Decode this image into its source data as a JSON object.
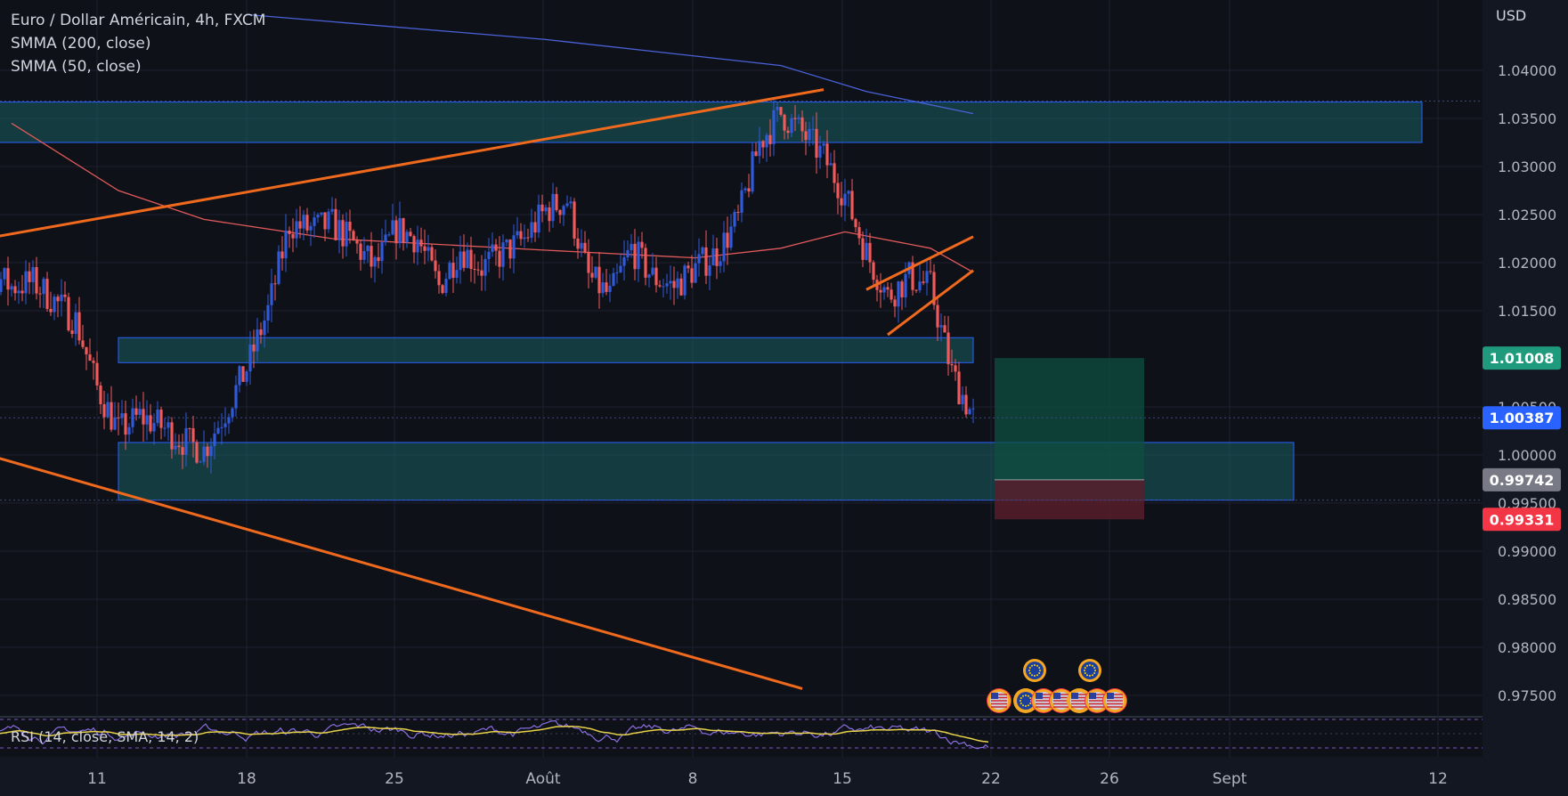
{
  "legend": {
    "symbol": "Euro / Dollar Américain, 4h, FXCM",
    "smma200": "SMMA (200, close)",
    "smma50": "SMMA (50, close)"
  },
  "rsi_label": "RSI (14, close, SMA, 14, 2)",
  "currency": "USD",
  "colors": {
    "background": "#0f1119",
    "bull": "#2f5bdb",
    "bear": "#f05a5a",
    "smma200": "#4a62d8",
    "smma50": "#e05a5a",
    "trendline": "#f06a1e",
    "zone_fill": "#1a6e6e",
    "zone_border": "#2962ff",
    "target_zone": "#0f4f40",
    "stop_zone": "#5a1e2a",
    "rsi": "#8a6fe0",
    "rsi_ma": "#e6d24a"
  },
  "chart_data": {
    "type": "candlestick",
    "symbol": "EURUSD",
    "timeframe": "4h",
    "y_axis_ticks": [
      "1.04000",
      "1.03500",
      "1.03000",
      "1.02500",
      "1.02000",
      "1.01500",
      "1.00500",
      "1.00000",
      "0.99500",
      "0.99000",
      "0.98500",
      "0.98000",
      "0.97500"
    ],
    "x_axis_ticks": [
      "11",
      "18",
      "25",
      "Août",
      "8",
      "15",
      "22",
      "26",
      "Sept",
      "12"
    ],
    "ylim": [
      0.9725,
      1.0435
    ],
    "price_tags": [
      {
        "label": "1.01008",
        "value": 1.01008,
        "color": "#1f9a7c"
      },
      {
        "label": "1.00387",
        "value": 1.00387,
        "color": "#2962ff"
      },
      {
        "label": "0.99742",
        "value": 0.99742,
        "color": "#787b86"
      },
      {
        "label": "0.99331",
        "value": 0.99331,
        "color": "#f23645"
      }
    ],
    "zones": [
      {
        "name": "resistance-zone-top",
        "from_date": "2022-07-04",
        "to_date": "2022-09-11",
        "low": 1.0325,
        "high": 1.0367
      },
      {
        "name": "support-zone-middle",
        "from_date": "2022-07-12",
        "to_date": "2022-08-21",
        "low": 1.0096,
        "high": 1.0122
      },
      {
        "name": "support-zone-bottom",
        "from_date": "2022-07-12",
        "to_date": "2022-09-05",
        "low": 0.9953,
        "high": 1.0013
      }
    ],
    "position": {
      "entry": 0.99742,
      "target": 1.01008,
      "stop": 0.99331,
      "from_date": "2022-08-22",
      "to_date": "2022-08-29"
    },
    "trendlines": [
      {
        "name": "rising-resistance-line",
        "from": [
          "2022-07-05",
          1.0222
        ],
        "to": [
          "2022-08-14",
          1.038
        ]
      },
      {
        "name": "falling-support-line",
        "from": [
          "2022-07-04",
          1.0012
        ],
        "to": [
          "2022-08-13",
          0.9757
        ]
      },
      {
        "name": "flag-upper-line",
        "from": [
          "2022-08-16",
          1.0172
        ],
        "to": [
          "2022-08-21",
          1.0227
        ]
      },
      {
        "name": "flag-lower-line",
        "from": [
          "2022-08-17",
          1.0125
        ],
        "to": [
          "2022-08-21",
          1.0192
        ]
      }
    ],
    "ohlc_path": [
      [
        "2022-07-04",
        1.027
      ],
      [
        "2022-07-06",
        1.019
      ],
      [
        "2022-07-07",
        1.0175
      ],
      [
        "2022-07-08",
        1.018
      ],
      [
        "2022-07-10",
        1.014
      ],
      [
        "2022-07-11",
        1.007
      ],
      [
        "2022-07-12",
        1.0025
      ],
      [
        "2022-07-13",
        1.004
      ],
      [
        "2022-07-14",
        1.003
      ],
      [
        "2022-07-15",
        1.0015
      ],
      [
        "2022-07-16",
        1.0005
      ],
      [
        "2022-07-17",
        1.0045
      ],
      [
        "2022-07-18",
        1.009
      ],
      [
        "2022-07-19",
        1.015
      ],
      [
        "2022-07-20",
        1.024
      ],
      [
        "2022-07-21",
        1.0235
      ],
      [
        "2022-07-22",
        1.024
      ],
      [
        "2022-07-23",
        1.022
      ],
      [
        "2022-07-24",
        1.0195
      ],
      [
        "2022-07-25",
        1.0235
      ],
      [
        "2022-07-26",
        1.0225
      ],
      [
        "2022-07-27",
        1.0175
      ],
      [
        "2022-07-28",
        1.0215
      ],
      [
        "2022-07-29",
        1.0195
      ],
      [
        "2022-07-31",
        1.0225
      ],
      [
        "2022-08-01",
        1.0255
      ],
      [
        "2022-08-02",
        1.0265
      ],
      [
        "2022-08-03",
        1.0185
      ],
      [
        "2022-08-04",
        1.0165
      ],
      [
        "2022-08-05",
        1.0215
      ],
      [
        "2022-08-06",
        1.0185
      ],
      [
        "2022-08-07",
        1.0175
      ],
      [
        "2022-08-08",
        1.0195
      ],
      [
        "2022-08-09",
        1.021
      ],
      [
        "2022-08-10",
        1.0245
      ],
      [
        "2022-08-11",
        1.0325
      ],
      [
        "2022-08-12",
        1.0355
      ],
      [
        "2022-08-13",
        1.0335
      ],
      [
        "2022-08-14",
        1.031
      ],
      [
        "2022-08-15",
        1.027
      ],
      [
        "2022-08-16",
        1.021
      ],
      [
        "2022-08-17",
        1.0165
      ],
      [
        "2022-08-18",
        1.0185
      ],
      [
        "2022-08-19",
        1.0175
      ],
      [
        "2022-08-20",
        1.0085
      ],
      [
        "2022-08-21",
        1.0039
      ]
    ],
    "smma200_path": [
      [
        "2022-07-18",
        1.0458
      ],
      [
        "2022-08-01",
        1.0432
      ],
      [
        "2022-08-12",
        1.0405
      ],
      [
        "2022-08-16",
        1.0378
      ],
      [
        "2022-08-21",
        1.0355
      ]
    ],
    "smma50_path": [
      [
        "2022-07-07",
        1.0345
      ],
      [
        "2022-07-12",
        1.0275
      ],
      [
        "2022-07-16",
        1.0245
      ],
      [
        "2022-07-22",
        1.0225
      ],
      [
        "2022-08-01",
        1.0213
      ],
      [
        "2022-08-08",
        1.0205
      ],
      [
        "2022-08-12",
        1.0215
      ],
      [
        "2022-08-15",
        1.0232
      ],
      [
        "2022-08-19",
        1.0215
      ],
      [
        "2022-08-21",
        1.019
      ]
    ],
    "rsi_range": [
      30,
      70
    ],
    "events": {
      "eu_count": 3,
      "us_count": 6
    }
  }
}
